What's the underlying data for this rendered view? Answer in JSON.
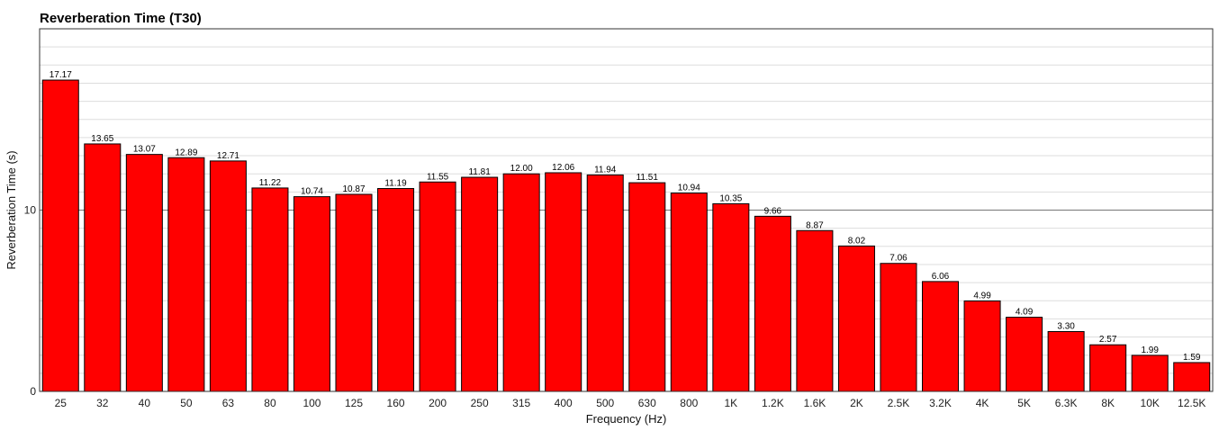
{
  "chart_data": {
    "type": "bar",
    "title": "Reverberation Time (T30)",
    "xlabel": "Frequency (Hz)",
    "ylabel": "Reverberation Time (s)",
    "ylim": [
      0,
      20
    ],
    "yticks": [
      "0",
      "10"
    ],
    "grid": true,
    "bar_color": "#ff0000",
    "categories": [
      "25",
      "32",
      "40",
      "50",
      "63",
      "80",
      "100",
      "125",
      "160",
      "200",
      "250",
      "315",
      "400",
      "500",
      "630",
      "800",
      "1K",
      "1.2K",
      "1.6K",
      "2K",
      "2.5K",
      "3.2K",
      "4K",
      "5K",
      "6.3K",
      "8K",
      "10K",
      "12.5K"
    ],
    "values": [
      17.17,
      13.65,
      13.07,
      12.89,
      12.71,
      11.22,
      10.74,
      10.87,
      11.19,
      11.55,
      11.81,
      12.0,
      12.06,
      11.94,
      11.51,
      10.94,
      10.35,
      9.66,
      8.87,
      8.02,
      7.06,
      6.06,
      4.99,
      4.09,
      3.3,
      2.57,
      1.99,
      1.59
    ],
    "value_labels": [
      "17.17",
      "13.65",
      "13.07",
      "12.89",
      "12.71",
      "11.22",
      "10.74",
      "10.87",
      "11.19",
      "11.55",
      "11.81",
      "12.00",
      "12.06",
      "11.94",
      "11.51",
      "10.94",
      "10.35",
      "9.66",
      "8.87",
      "8.02",
      "7.06",
      "6.06",
      "4.99",
      "4.09",
      "3.30",
      "2.57",
      "1.99",
      "1.59"
    ]
  }
}
